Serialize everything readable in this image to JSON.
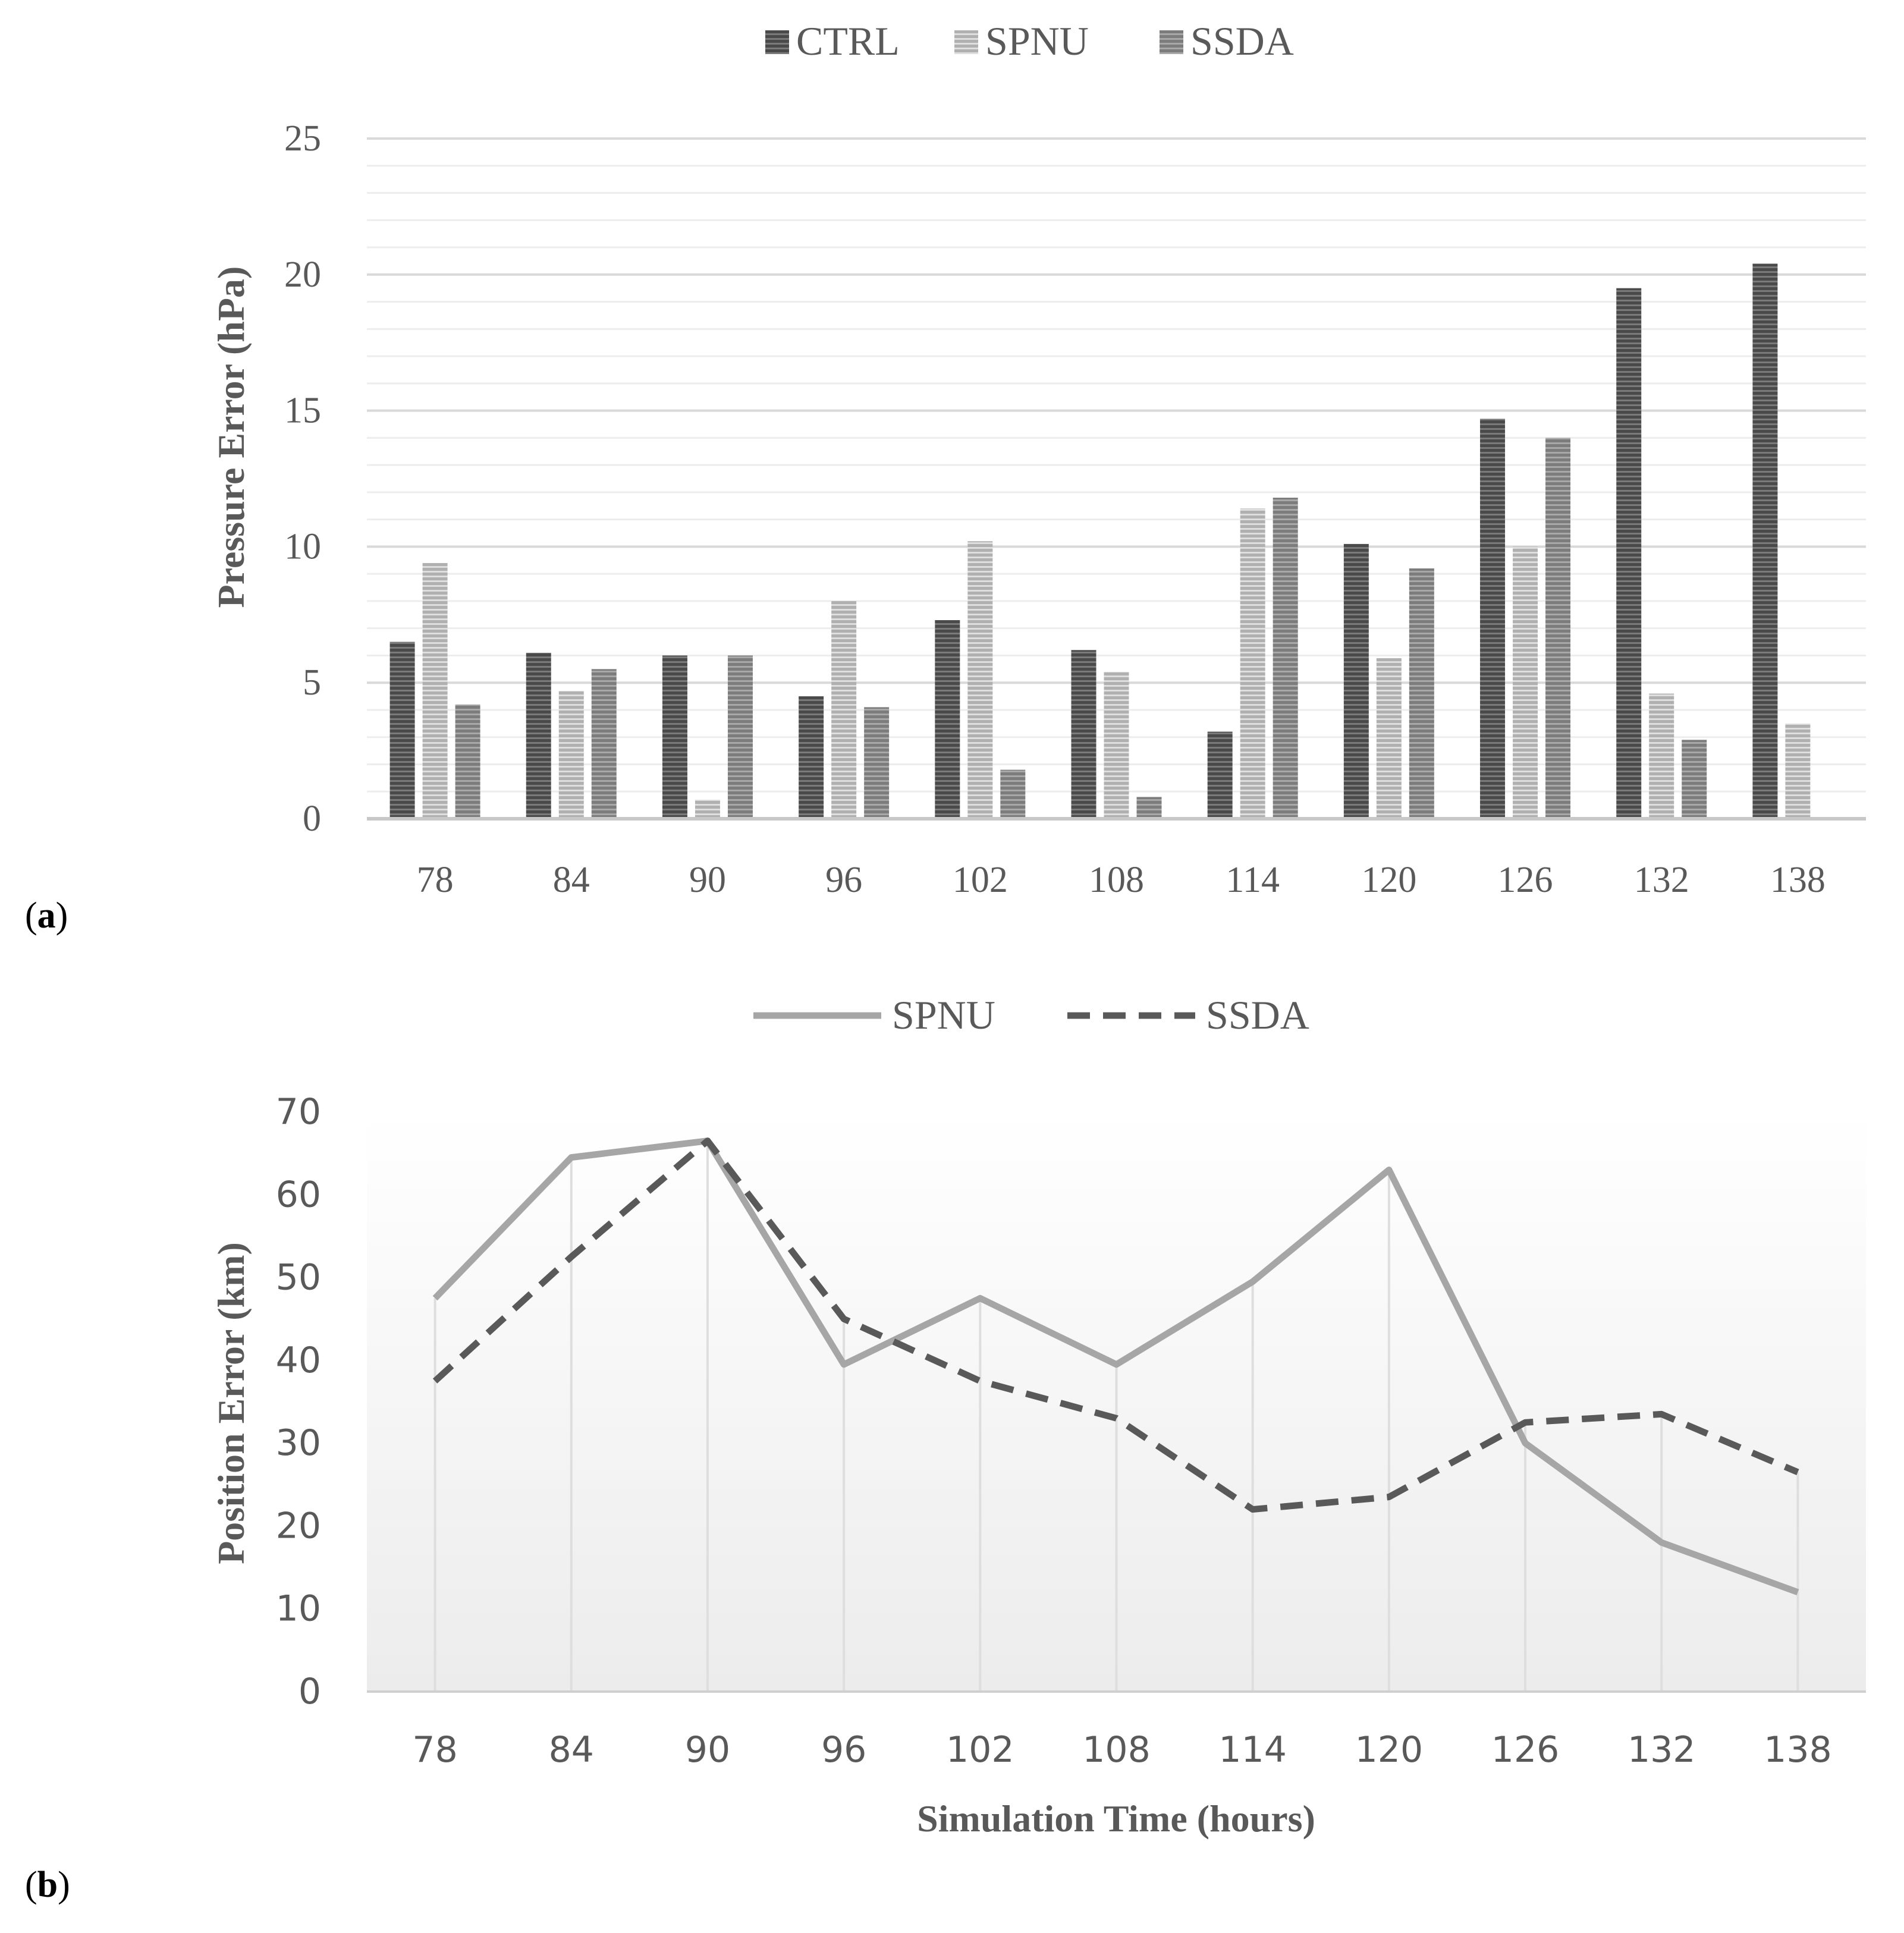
{
  "chart_data": [
    {
      "panel_label": "a",
      "type": "bar",
      "title": "",
      "xlabel": "",
      "ylabel": "Pressure Error (hPa)",
      "ylim": [
        0,
        25
      ],
      "yticks": [
        0,
        5,
        10,
        15,
        20,
        25
      ],
      "minor_grid_step": 1,
      "grid": true,
      "legend_position": "top",
      "categories": [
        "78",
        "84",
        "90",
        "96",
        "102",
        "108",
        "114",
        "120",
        "126",
        "132",
        "138"
      ],
      "series": [
        {
          "name": "CTRL",
          "color": "#5a5a5a",
          "values": [
            6.5,
            6.1,
            6.0,
            4.5,
            7.3,
            6.2,
            3.2,
            10.1,
            14.7,
            19.5,
            20.4
          ]
        },
        {
          "name": "SPNU",
          "color": "#c4c4c4",
          "values": [
            9.4,
            4.7,
            0.7,
            8.0,
            10.2,
            5.4,
            11.4,
            5.9,
            10.0,
            4.6,
            3.5
          ]
        },
        {
          "name": "SSDA",
          "color": "#8a8a8a",
          "values": [
            4.2,
            5.5,
            6.0,
            4.1,
            1.8,
            0.8,
            11.8,
            9.2,
            14.0,
            2.9,
            0
          ]
        }
      ]
    },
    {
      "panel_label": "b",
      "type": "line",
      "title": "",
      "xlabel": "Simulation Time (hours)",
      "ylabel": "Position Error (km)",
      "ylim": [
        0,
        70
      ],
      "yticks": [
        0,
        10,
        20,
        30,
        40,
        50,
        60,
        70
      ],
      "grid": true,
      "legend_position": "top",
      "categories": [
        "78",
        "84",
        "90",
        "96",
        "102",
        "108",
        "114",
        "120",
        "126",
        "132",
        "138"
      ],
      "series": [
        {
          "name": "SPNU",
          "style": "solid",
          "color": "#a6a6a6",
          "values": [
            47.5,
            64.5,
            66.5,
            39.5,
            47.5,
            39.5,
            49.5,
            63,
            30,
            18,
            12
          ]
        },
        {
          "name": "SSDA",
          "style": "dashed",
          "color": "#595959",
          "values": [
            37.5,
            52.5,
            66.5,
            45,
            37.5,
            33,
            22,
            23.5,
            32.5,
            33.5,
            26.5
          ]
        }
      ]
    }
  ]
}
